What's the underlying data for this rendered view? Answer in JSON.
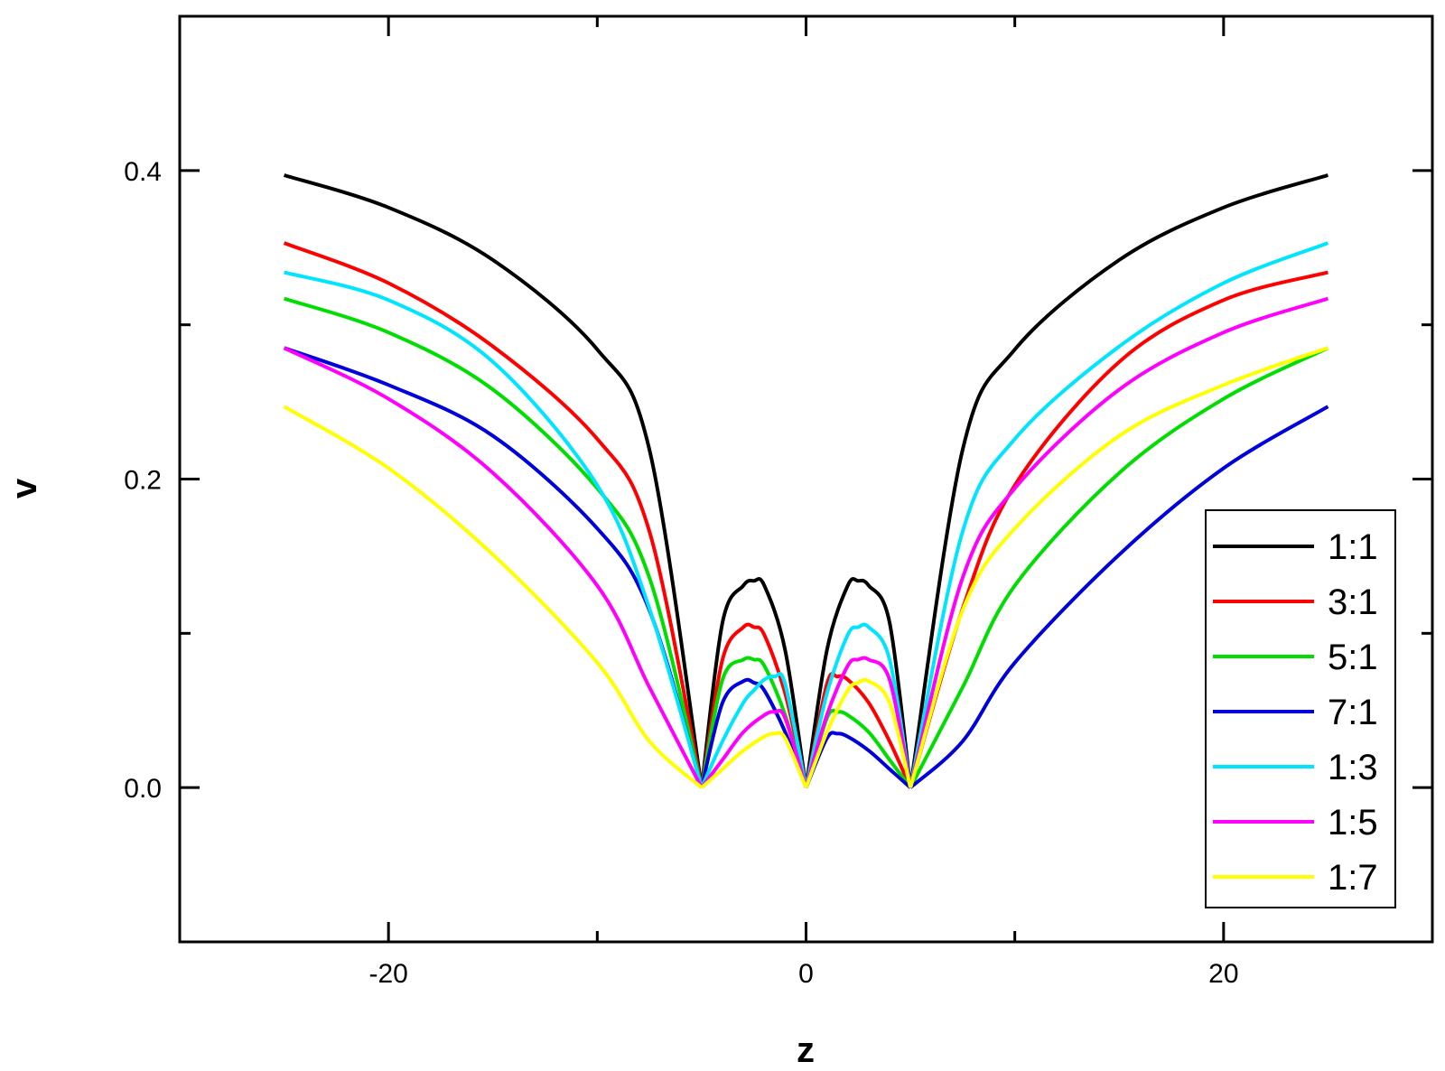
{
  "chart_data": {
    "type": "line",
    "title": "",
    "xlabel": "z",
    "ylabel": "v",
    "xlim": [
      -30,
      30
    ],
    "ylim": [
      -0.1,
      0.5
    ],
    "x_major_ticks": [
      -20,
      0,
      20
    ],
    "x_minor_ticks": [
      -30,
      -10,
      10,
      30
    ],
    "x_tick_labels": [
      "-20",
      "0",
      "20"
    ],
    "y_major_ticks": [
      0.0,
      0.2,
      0.4
    ],
    "y_minor_ticks": [
      -0.1,
      0.1,
      0.3,
      0.5
    ],
    "y_tick_labels": [
      "0.0",
      "0.2",
      "0.4"
    ],
    "grid": false,
    "legend_position": "bottom-right",
    "series": [
      {
        "name": "1:1",
        "color": "#000000",
        "x": [
          -25,
          -20,
          -15,
          -10,
          -7.5,
          -5,
          -4,
          -3,
          -2.5,
          -2,
          -1,
          0,
          1,
          2,
          2.5,
          3,
          4,
          5,
          7.5,
          10,
          15,
          20,
          25
        ],
        "y": [
          0.397,
          0.376,
          0.342,
          0.284,
          0.219,
          0.0,
          0.107,
          0.131,
          0.134,
          0.131,
          0.089,
          0.0,
          0.089,
          0.131,
          0.134,
          0.131,
          0.107,
          0.0,
          0.219,
          0.284,
          0.342,
          0.376,
          0.397
        ]
      },
      {
        "name": "3:1",
        "color": "#ff0000",
        "x": [
          -25,
          -20,
          -15,
          -10,
          -7.5,
          -5,
          -4,
          -3,
          -2.5,
          -2,
          -1,
          0,
          1,
          1.5,
          2,
          3,
          4,
          5,
          7.5,
          10,
          15,
          20,
          25
        ],
        "y": [
          0.353,
          0.327,
          0.286,
          0.226,
          0.166,
          0.0,
          0.083,
          0.104,
          0.104,
          0.099,
          0.061,
          0.0,
          0.067,
          0.072,
          0.07,
          0.055,
          0.03,
          0.0,
          0.116,
          0.196,
          0.276,
          0.316,
          0.334
        ]
      },
      {
        "name": "5:1",
        "color": "#00dd00",
        "x": [
          -25,
          -20,
          -15,
          -10,
          -7.5,
          -5,
          -4,
          -3,
          -2.5,
          -2,
          -1,
          0,
          1,
          1.5,
          2,
          3,
          4,
          5,
          7.5,
          10,
          15,
          20,
          25
        ],
        "y": [
          0.317,
          0.295,
          0.258,
          0.194,
          0.136,
          0.0,
          0.07,
          0.083,
          0.083,
          0.079,
          0.047,
          0.0,
          0.045,
          0.049,
          0.047,
          0.036,
          0.018,
          0.0,
          0.065,
          0.131,
          0.204,
          0.252,
          0.285
        ]
      },
      {
        "name": "7:1",
        "color": "#0000dd",
        "x": [
          -25,
          -20,
          -15,
          -10,
          -7.5,
          -5,
          -4,
          -3,
          -2.5,
          -2,
          -1,
          0,
          1,
          1.5,
          2,
          3,
          4,
          5,
          7.5,
          10,
          15,
          20,
          25
        ],
        "y": [
          0.285,
          0.261,
          0.228,
          0.168,
          0.115,
          0.0,
          0.055,
          0.069,
          0.068,
          0.063,
          0.036,
          0.0,
          0.032,
          0.035,
          0.033,
          0.024,
          0.012,
          0.0,
          0.03,
          0.081,
          0.151,
          0.207,
          0.247
        ]
      },
      {
        "name": "1:3",
        "color": "#00e5ff",
        "x": [
          -25,
          -20,
          -15,
          -10,
          -7.5,
          -5,
          -4,
          -3,
          -2.5,
          -2,
          -1.5,
          -1,
          0,
          1,
          2,
          2.5,
          3,
          4,
          5,
          7.5,
          10,
          15,
          20,
          25
        ],
        "y": [
          0.334,
          0.316,
          0.276,
          0.196,
          0.116,
          0.0,
          0.03,
          0.055,
          0.063,
          0.07,
          0.072,
          0.067,
          0.0,
          0.061,
          0.099,
          0.104,
          0.104,
          0.083,
          0.0,
          0.166,
          0.226,
          0.286,
          0.327,
          0.353
        ]
      },
      {
        "name": "1:5",
        "color": "#ff00ff",
        "x": [
          -25,
          -20,
          -15,
          -10,
          -7.5,
          -5,
          -4,
          -3,
          -2,
          -1.5,
          -1,
          0,
          1,
          2,
          2.5,
          3,
          4,
          5,
          7.5,
          10,
          15,
          20,
          25
        ],
        "y": [
          0.285,
          0.252,
          0.204,
          0.131,
          0.065,
          0.0,
          0.018,
          0.036,
          0.047,
          0.049,
          0.045,
          0.0,
          0.047,
          0.079,
          0.083,
          0.083,
          0.07,
          0.0,
          0.136,
          0.194,
          0.258,
          0.295,
          0.317
        ]
      },
      {
        "name": "1:7",
        "color": "#ffff00",
        "x": [
          -25,
          -20,
          -15,
          -10,
          -7.5,
          -5,
          -4,
          -3,
          -2,
          -1.5,
          -1,
          0,
          1,
          2,
          2.5,
          3,
          4,
          5,
          7.5,
          10,
          15,
          20,
          25
        ],
        "y": [
          0.247,
          0.207,
          0.151,
          0.081,
          0.03,
          0.0,
          0.012,
          0.024,
          0.033,
          0.035,
          0.032,
          0.0,
          0.036,
          0.063,
          0.068,
          0.069,
          0.055,
          0.0,
          0.115,
          0.168,
          0.228,
          0.261,
          0.285
        ]
      }
    ]
  }
}
